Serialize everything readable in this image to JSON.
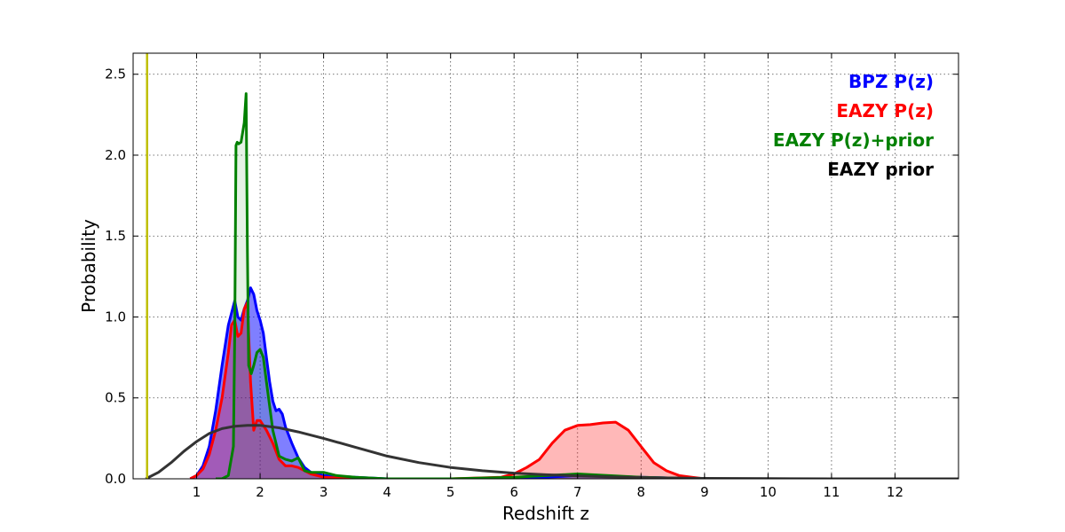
{
  "chart_data": {
    "type": "area",
    "title": "",
    "xlabel": "Redshift z",
    "ylabel": "Probability",
    "xlim": [
      0,
      13
    ],
    "ylim": [
      0,
      2.63
    ],
    "x_ticks": [
      1,
      2,
      3,
      4,
      5,
      6,
      7,
      8,
      9,
      10,
      11,
      12
    ],
    "y_ticks": [
      0.0,
      0.5,
      1.0,
      1.5,
      2.0,
      2.5
    ],
    "x_tick_labels": [
      "1",
      "2",
      "3",
      "4",
      "5",
      "6",
      "7",
      "8",
      "9",
      "10",
      "11",
      "12"
    ],
    "y_tick_labels": [
      "0.0",
      "0.5",
      "1.0",
      "1.5",
      "2.0",
      "2.5"
    ],
    "grid": true,
    "legend_position": "top-right",
    "vertical_line": {
      "x": 0.22,
      "color": "#bfbf00"
    },
    "series": [
      {
        "name": "BPZ P(z)",
        "color": "#0000ff",
        "fill": "#0000ff",
        "fill_opacity": 0.5,
        "x": [
          0.9,
          1.0,
          1.1,
          1.2,
          1.3,
          1.4,
          1.5,
          1.6,
          1.65,
          1.7,
          1.75,
          1.8,
          1.85,
          1.9,
          1.95,
          2.0,
          2.05,
          2.1,
          2.15,
          2.2,
          2.25,
          2.3,
          2.35,
          2.4,
          2.5,
          2.6,
          2.7,
          2.8,
          2.9,
          3.0,
          3.5,
          4.0,
          5.0,
          6.0,
          7.0,
          8.0,
          9.0,
          10.0,
          11.0,
          12.0,
          13.0
        ],
        "y": [
          0.0,
          0.02,
          0.08,
          0.2,
          0.42,
          0.7,
          0.95,
          1.1,
          1.0,
          0.98,
          1.05,
          1.1,
          1.18,
          1.14,
          1.04,
          0.98,
          0.9,
          0.75,
          0.6,
          0.48,
          0.42,
          0.43,
          0.4,
          0.32,
          0.22,
          0.13,
          0.07,
          0.04,
          0.03,
          0.02,
          0.01,
          0.0,
          0.0,
          0.0,
          0.02,
          0.01,
          0.0,
          0.0,
          0.0,
          0.0,
          0.0
        ]
      },
      {
        "name": "EAZY P(z)",
        "color": "#ff0000",
        "fill": "#ff0000",
        "fill_opacity": 0.28,
        "x": [
          0.9,
          1.0,
          1.1,
          1.2,
          1.3,
          1.4,
          1.5,
          1.55,
          1.6,
          1.65,
          1.7,
          1.75,
          1.8,
          1.85,
          1.9,
          1.95,
          2.0,
          2.1,
          2.2,
          2.3,
          2.4,
          2.5,
          2.6,
          2.7,
          2.8,
          3.0,
          3.5,
          4.0,
          5.0,
          5.8,
          6.0,
          6.2,
          6.4,
          6.6,
          6.8,
          7.0,
          7.2,
          7.4,
          7.6,
          7.8,
          8.0,
          8.2,
          8.4,
          8.6,
          8.8,
          9.0,
          13.0
        ],
        "y": [
          0.0,
          0.02,
          0.06,
          0.15,
          0.3,
          0.5,
          0.78,
          0.95,
          0.98,
          0.88,
          0.9,
          1.05,
          1.09,
          0.6,
          0.3,
          0.36,
          0.36,
          0.3,
          0.22,
          0.12,
          0.08,
          0.08,
          0.07,
          0.05,
          0.03,
          0.01,
          0.0,
          0.0,
          0.0,
          0.01,
          0.03,
          0.07,
          0.12,
          0.22,
          0.3,
          0.33,
          0.335,
          0.345,
          0.35,
          0.3,
          0.2,
          0.1,
          0.05,
          0.02,
          0.01,
          0.0,
          0.0
        ]
      },
      {
        "name": "EAZY P(z)+prior",
        "color": "#008000",
        "fill": "#008000",
        "fill_opacity": 0.1,
        "x": [
          1.3,
          1.4,
          1.5,
          1.58,
          1.6,
          1.62,
          1.64,
          1.66,
          1.7,
          1.75,
          1.78,
          1.8,
          1.82,
          1.86,
          1.9,
          1.95,
          2.0,
          2.05,
          2.1,
          2.2,
          2.3,
          2.4,
          2.5,
          2.6,
          2.7,
          2.8,
          3.0,
          3.2,
          3.5,
          4.0,
          5.0,
          6.0,
          7.0,
          8.0,
          9.0,
          13.0
        ],
        "y": [
          0.0,
          0.0,
          0.02,
          0.2,
          0.9,
          2.06,
          2.08,
          2.07,
          2.08,
          2.2,
          2.38,
          1.4,
          0.7,
          0.65,
          0.7,
          0.78,
          0.8,
          0.75,
          0.6,
          0.3,
          0.14,
          0.12,
          0.11,
          0.13,
          0.05,
          0.04,
          0.04,
          0.02,
          0.01,
          0.0,
          0.0,
          0.01,
          0.03,
          0.01,
          0.0,
          0.0
        ]
      },
      {
        "name": "EAZY prior",
        "color": "#333333",
        "fill": null,
        "x": [
          0.2,
          0.4,
          0.6,
          0.8,
          1.0,
          1.2,
          1.4,
          1.6,
          1.8,
          2.0,
          2.3,
          2.6,
          3.0,
          3.5,
          4.0,
          4.5,
          5.0,
          5.5,
          6.0,
          6.5,
          7.0,
          7.5,
          8.0,
          8.5,
          9.0,
          10.0,
          11.0,
          12.0,
          13.0
        ],
        "y": [
          0.0,
          0.04,
          0.1,
          0.17,
          0.23,
          0.28,
          0.31,
          0.325,
          0.33,
          0.33,
          0.315,
          0.29,
          0.25,
          0.195,
          0.14,
          0.1,
          0.07,
          0.05,
          0.035,
          0.025,
          0.018,
          0.012,
          0.008,
          0.005,
          0.003,
          0.001,
          0.0,
          0.0,
          0.0
        ]
      }
    ],
    "legend": [
      {
        "label": "BPZ P(z)",
        "color": "#0000ff"
      },
      {
        "label": "EAZY P(z)",
        "color": "#ff0000"
      },
      {
        "label": "EAZY P(z)+prior",
        "color": "#008000"
      },
      {
        "label": "EAZY prior",
        "color": "#000000"
      }
    ]
  }
}
